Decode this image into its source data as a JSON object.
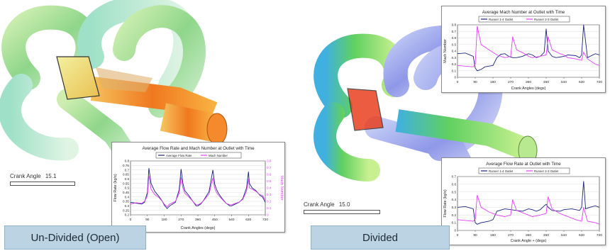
{
  "panels": {
    "left": {
      "crank_label": "Crank Angle",
      "crank_value": "15.1",
      "caption": "Un-Divided (Open)"
    },
    "right": {
      "crank_label": "Crank Angle",
      "crank_value": "15.0",
      "caption": "Divided"
    }
  },
  "colors": {
    "blue": "#1a237e",
    "pink": "#e040fb",
    "caption_bg": "#bcd3e3"
  },
  "chart_data": [
    {
      "type": "line",
      "title": "Average Flow Rate and Mach Number at Outlet with Time",
      "xlabel": "Crank Angles (degs)",
      "ylabel": "Flow Rate (kg/s)",
      "y2label": "Mach Number",
      "xticks": [
        0,
        90,
        180,
        270,
        360,
        450,
        540,
        630,
        720
      ],
      "yticks": [
        "0.2",
        "0.25",
        "0.3",
        "0.35",
        "0.4",
        "0.45",
        "0.5",
        "0.55",
        "0.6",
        "0.65",
        "0.7",
        "0.75",
        "0.8"
      ],
      "y2ticks": [
        "0",
        "0.1",
        "0.2",
        "0.3",
        "0.4",
        "0.5",
        "0.6",
        "0.7",
        "0.8"
      ],
      "xlim": [
        0,
        720
      ],
      "ylim": [
        0.2,
        0.8
      ],
      "y2lim": [
        0,
        0.8
      ],
      "legend": [
        "Average Flow Rate",
        "Mach Number"
      ],
      "series": [
        {
          "name": "Average Flow Rate",
          "axis": "left",
          "x": [
            0,
            30,
            60,
            75,
            90,
            98,
            110,
            130,
            150,
            170,
            180,
            195,
            210,
            240,
            260,
            270,
            280,
            290,
            310,
            330,
            350,
            360,
            375,
            390,
            420,
            440,
            450,
            460,
            470,
            490,
            510,
            530,
            540,
            560,
            580,
            600,
            620,
            630,
            635,
            650,
            670,
            690,
            705,
            720
          ],
          "y": [
            0.34,
            0.33,
            0.32,
            0.34,
            0.45,
            0.72,
            0.55,
            0.46,
            0.41,
            0.35,
            0.31,
            0.27,
            0.3,
            0.34,
            0.48,
            0.71,
            0.55,
            0.47,
            0.42,
            0.36,
            0.3,
            0.3,
            0.32,
            0.36,
            0.46,
            0.7,
            0.54,
            0.48,
            0.44,
            0.38,
            0.33,
            0.3,
            0.3,
            0.32,
            0.34,
            0.38,
            0.5,
            0.68,
            0.55,
            0.5,
            0.47,
            0.42,
            0.4,
            0.34
          ]
        },
        {
          "name": "Mach Number",
          "axis": "right",
          "x": [
            0,
            30,
            60,
            75,
            90,
            98,
            110,
            130,
            150,
            170,
            180,
            195,
            210,
            240,
            260,
            270,
            280,
            290,
            310,
            330,
            350,
            360,
            375,
            390,
            420,
            440,
            450,
            460,
            470,
            490,
            510,
            530,
            540,
            560,
            580,
            600,
            620,
            630,
            635,
            650,
            670,
            690,
            705,
            720
          ],
          "y": [
            0.16,
            0.18,
            0.17,
            0.2,
            0.28,
            0.58,
            0.38,
            0.3,
            0.26,
            0.2,
            0.16,
            0.12,
            0.16,
            0.2,
            0.32,
            0.56,
            0.4,
            0.32,
            0.27,
            0.21,
            0.15,
            0.15,
            0.17,
            0.21,
            0.31,
            0.55,
            0.39,
            0.33,
            0.29,
            0.23,
            0.17,
            0.15,
            0.15,
            0.17,
            0.19,
            0.23,
            0.35,
            0.53,
            0.4,
            0.38,
            0.35,
            0.3,
            0.29,
            0.22
          ]
        }
      ]
    },
    {
      "type": "line",
      "title": "Average Mach Number at Outlet with Time",
      "xlabel": "Crank Angles (degs)",
      "ylabel": "Mach Number",
      "xticks": [
        0,
        90,
        180,
        270,
        360,
        450,
        540,
        630,
        720
      ],
      "yticks": [
        "0",
        "0.1",
        "0.2",
        "0.3",
        "0.4",
        "0.5",
        "0.6",
        "0.7",
        "0.8"
      ],
      "xlim": [
        0,
        720
      ],
      "ylim": [
        0,
        0.8
      ],
      "legend": [
        "Runner 1-4 Outlet",
        "Runner 2-3 Outlet"
      ],
      "series": [
        {
          "name": "Runner 1-4 Outlet",
          "x": [
            0,
            40,
            80,
            90,
            100,
            120,
            140,
            180,
            200,
            220,
            240,
            260,
            280,
            300,
            330,
            360,
            380,
            400,
            420,
            440,
            450,
            460,
            480,
            500,
            540,
            560,
            600,
            620,
            630,
            640,
            660,
            700,
            720
          ],
          "y": [
            0.36,
            0.37,
            0.32,
            0.14,
            0.1,
            0.12,
            0.16,
            0.18,
            0.3,
            0.35,
            0.36,
            0.32,
            0.3,
            0.3,
            0.32,
            0.36,
            0.34,
            0.3,
            0.32,
            0.38,
            0.74,
            0.4,
            0.32,
            0.3,
            0.32,
            0.34,
            0.33,
            0.3,
            0.34,
            0.8,
            0.3,
            0.36,
            0.34
          ]
        },
        {
          "name": "Runner 2-3 Outlet",
          "x": [
            0,
            40,
            80,
            90,
            100,
            120,
            160,
            180,
            200,
            240,
            270,
            280,
            300,
            340,
            360,
            380,
            420,
            450,
            460,
            480,
            520,
            540,
            560,
            600,
            630,
            640,
            660,
            700,
            720
          ],
          "y": [
            0.18,
            0.17,
            0.16,
            0.2,
            0.78,
            0.5,
            0.42,
            0.38,
            0.34,
            0.3,
            0.32,
            0.62,
            0.42,
            0.36,
            0.32,
            0.3,
            0.32,
            0.34,
            0.62,
            0.42,
            0.36,
            0.34,
            0.3,
            0.28,
            0.26,
            0.38,
            0.28,
            0.2,
            0.18
          ]
        }
      ]
    },
    {
      "type": "line",
      "title": "Average Flow Rate at Outlet with Time",
      "xlabel": "Crank Angle + (degs)",
      "ylabel": "Flow Rate (kg/s)",
      "xticks": [
        0,
        90,
        180,
        270,
        360,
        450,
        540,
        630,
        720
      ],
      "yticks": [
        "0",
        "0.1",
        "0.2",
        "0.3",
        "0.4",
        "0.5",
        "0.6",
        "0.7"
      ],
      "xlim": [
        0,
        720
      ],
      "ylim": [
        0,
        0.7
      ],
      "legend": [
        "Runner 1-4 Outlet",
        "Runner 2-3 Outlet"
      ],
      "series": [
        {
          "name": "Runner 1-4 Outlet",
          "x": [
            0,
            40,
            80,
            90,
            100,
            120,
            160,
            180,
            200,
            240,
            270,
            300,
            330,
            360,
            380,
            400,
            420,
            440,
            450,
            460,
            480,
            520,
            540,
            580,
            600,
            620,
            630,
            640,
            650,
            670,
            700,
            720
          ],
          "y": [
            0.3,
            0.31,
            0.28,
            0.1,
            0.08,
            0.1,
            0.12,
            0.14,
            0.25,
            0.28,
            0.27,
            0.26,
            0.25,
            0.28,
            0.27,
            0.25,
            0.27,
            0.32,
            0.34,
            0.3,
            0.26,
            0.25,
            0.27,
            0.28,
            0.27,
            0.26,
            0.3,
            0.64,
            0.28,
            0.3,
            0.32,
            0.3
          ]
        },
        {
          "name": "Runner 2-3 Outlet",
          "x": [
            0,
            40,
            80,
            90,
            100,
            120,
            160,
            180,
            200,
            240,
            270,
            280,
            300,
            340,
            360,
            380,
            420,
            450,
            460,
            480,
            520,
            540,
            580,
            600,
            630,
            640,
            660,
            700,
            720
          ],
          "y": [
            0.14,
            0.13,
            0.12,
            0.15,
            0.46,
            0.3,
            0.24,
            0.22,
            0.2,
            0.18,
            0.2,
            0.4,
            0.26,
            0.22,
            0.2,
            0.18,
            0.2,
            0.22,
            0.44,
            0.28,
            0.22,
            0.2,
            0.16,
            0.14,
            0.12,
            0.3,
            0.12,
            0.1,
            0.08
          ]
        }
      ]
    }
  ]
}
